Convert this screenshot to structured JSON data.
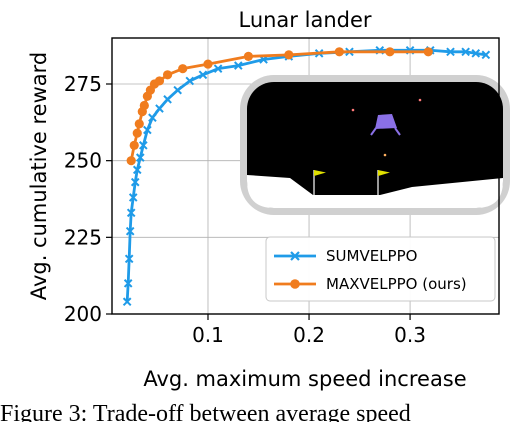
{
  "chart_data": {
    "type": "line",
    "title": "Lunar lander",
    "xlabel": "Avg. maximum speed increase",
    "ylabel": "Avg. cumulative reward",
    "xlim": [
      0.005,
      0.388
    ],
    "ylim": [
      200,
      290
    ],
    "xticks": [
      {
        "value": 0.1,
        "label": "0.1"
      },
      {
        "value": 0.2,
        "label": "0.2"
      },
      {
        "value": 0.3,
        "label": "0.3"
      }
    ],
    "yticks": [
      {
        "value": 200,
        "label": "200"
      },
      {
        "value": 225,
        "label": "225"
      },
      {
        "value": 250,
        "label": "250"
      },
      {
        "value": 275,
        "label": "275"
      }
    ],
    "grid": true,
    "legend_position": "lower-right",
    "series": [
      {
        "name": "SUMVELPPO",
        "color": "#1f9be8",
        "marker": "x",
        "x": [
          0.02,
          0.021,
          0.022,
          0.023,
          0.024,
          0.026,
          0.028,
          0.03,
          0.033,
          0.036,
          0.04,
          0.045,
          0.052,
          0.06,
          0.07,
          0.082,
          0.095,
          0.11,
          0.13,
          0.155,
          0.18,
          0.21,
          0.24,
          0.27,
          0.3,
          0.32,
          0.34,
          0.355,
          0.365,
          0.375
        ],
        "y": [
          204,
          210,
          218,
          227,
          233,
          238,
          243,
          247,
          251,
          255,
          260,
          264,
          267,
          270,
          273,
          276,
          278,
          280,
          281,
          283,
          284,
          285,
          285.5,
          286,
          286,
          286,
          285.5,
          285.5,
          285,
          284.5
        ]
      },
      {
        "name": "MAXVELPPO (ours)",
        "color": "#f07c1e",
        "marker": "o",
        "x": [
          0.024,
          0.027,
          0.03,
          0.032,
          0.035,
          0.037,
          0.04,
          0.043,
          0.047,
          0.052,
          0.06,
          0.075,
          0.1,
          0.14,
          0.18,
          0.23,
          0.28,
          0.318
        ],
        "y": [
          250,
          255,
          259,
          262,
          266,
          268,
          271,
          273,
          275,
          276,
          278,
          280,
          281.5,
          284,
          284.5,
          285.5,
          285.5,
          285.5
        ]
      }
    ]
  },
  "caption": {
    "text": "Figure 3:  Trade-off between average speed"
  }
}
